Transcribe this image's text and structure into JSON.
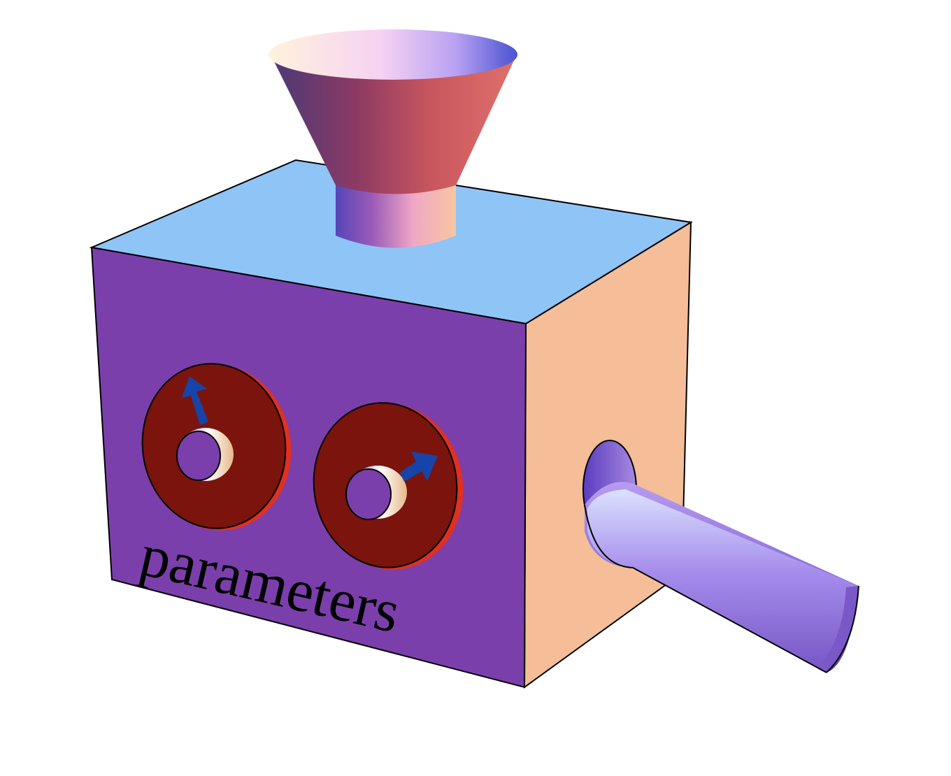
{
  "machine": {
    "label": "parameters",
    "parts": {
      "hopper": "funnel-input",
      "knobs": [
        "knob-1",
        "knob-2"
      ],
      "output": "chute-output"
    }
  },
  "colors": {
    "front_face": "#7b3fab",
    "top_face": "#8fc4f7",
    "side_face": "#f5bd98",
    "knob_face": "#7a140d",
    "knob_rim": "#e0301f",
    "arrow": "#1744a8",
    "edge": "#000000"
  }
}
